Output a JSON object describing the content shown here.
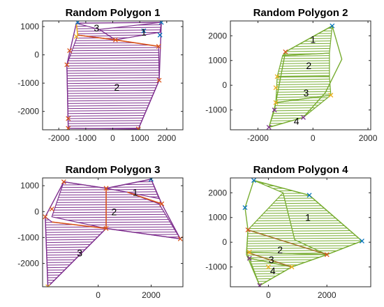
{
  "chart_data": [
    {
      "type": "line",
      "title": "Random Polygon 1",
      "xlim": [
        -2600,
        2600
      ],
      "ylim": [
        -2650,
        1200
      ],
      "xticks": [
        -2000,
        -1000,
        0,
        1000,
        2000
      ],
      "xtick_labels": [
        "-2000",
        "-1000",
        "0",
        "1000",
        "2000"
      ],
      "yticks": [
        -2000,
        -1000,
        0,
        1000
      ],
      "ytick_labels": [
        "-2000",
        "-1000",
        "0",
        "1000"
      ],
      "grid": false,
      "hatch_color": "#7e2f8e",
      "outline": [
        [
          -1350,
          1120
        ],
        [
          1800,
          1150
        ],
        [
          1720,
          -900
        ],
        [
          950,
          -2620
        ],
        [
          -1650,
          -2600
        ],
        [
          -1700,
          -350
        ]
      ],
      "regions": [
        {
          "label": "3",
          "points": [
            [
              -1350,
              1120
            ],
            [
              -500,
              900
            ],
            [
              100,
              530
            ],
            [
              -1300,
              700
            ]
          ],
          "label_at": [
            -600,
            950
          ]
        },
        {
          "label": "1",
          "points": [
            [
              100,
              530
            ],
            [
              1750,
              800
            ],
            [
              1800,
              1150
            ],
            [
              -500,
              900
            ]
          ],
          "label_at": [
            1150,
            800
          ]
        },
        {
          "label": "2",
          "points": [
            [
              -1700,
              -350
            ],
            [
              -1300,
              700
            ],
            [
              100,
              530
            ],
            [
              1700,
              300
            ],
            [
              1720,
              -900
            ],
            [
              950,
              -2620
            ],
            [
              -1650,
              -2600
            ]
          ],
          "label_at": [
            150,
            -1150
          ]
        }
      ],
      "markers": [
        {
          "x": -1300,
          "y": 1150,
          "color": "#0072bd"
        },
        {
          "x": 1800,
          "y": 1150,
          "color": "#0072bd"
        },
        {
          "x": 1150,
          "y": 850,
          "color": "#0072bd"
        },
        {
          "x": 1750,
          "y": 700,
          "color": "#0072bd"
        },
        {
          "x": -1350,
          "y": 650,
          "color": "#edb120"
        },
        {
          "x": 100,
          "y": 530,
          "color": "#d95319"
        },
        {
          "x": 1700,
          "y": 300,
          "color": "#d95319"
        },
        {
          "x": -1600,
          "y": 150,
          "color": "#d95319"
        },
        {
          "x": -1700,
          "y": -350,
          "color": "#d95319"
        },
        {
          "x": 1720,
          "y": -900,
          "color": "#d95319"
        },
        {
          "x": -1650,
          "y": -2250,
          "color": "#d95319"
        },
        {
          "x": -1650,
          "y": -2600,
          "color": "#d95319"
        },
        {
          "x": 950,
          "y": -2620,
          "color": "#d95319"
        }
      ],
      "inner_lines": [
        {
          "points": [
            [
              -1300,
              700
            ],
            [
              100,
              530
            ],
            [
              1700,
              300
            ]
          ],
          "color": "#d95319"
        },
        {
          "points": [
            [
              -1350,
              1120
            ],
            [
              -1300,
              700
            ]
          ],
          "color": "#edb120"
        }
      ]
    },
    {
      "type": "line",
      "title": "Random Polygon 2",
      "xlim": [
        -3000,
        2100
      ],
      "ylim": [
        -1800,
        2600
      ],
      "xticks": [
        -2000,
        0,
        2000
      ],
      "xtick_labels": [
        "-2000",
        "0",
        "2000"
      ],
      "yticks": [
        -1000,
        0,
        1000,
        2000
      ],
      "ytick_labels": [
        "-1000",
        "0",
        "1000",
        "2000"
      ],
      "grid": false,
      "hatch_color": "#77ac30",
      "outline": [
        [
          700,
          2400
        ],
        [
          1050,
          1050
        ],
        [
          450,
          -300
        ],
        [
          -350,
          -1300
        ],
        [
          -1600,
          -1700
        ],
        [
          -1400,
          -1000
        ],
        [
          -1000,
          1350
        ]
      ],
      "regions": [
        {
          "label": "1",
          "points": [
            [
              -1000,
              1350
            ],
            [
              700,
              2400
            ],
            [
              600,
              1300
            ],
            [
              -1100,
              1200
            ]
          ],
          "label_at": [
            0,
            1850
          ]
        },
        {
          "label": "2",
          "points": [
            [
              -1100,
              1200
            ],
            [
              600,
              1300
            ],
            [
              600,
              350
            ],
            [
              -1300,
              350
            ]
          ],
          "label_at": [
            -150,
            800
          ]
        },
        {
          "label": "3",
          "points": [
            [
              -1300,
              350
            ],
            [
              600,
              350
            ],
            [
              650,
              -400
            ],
            [
              -1350,
              -700
            ]
          ],
          "label_at": [
            -250,
            -300
          ]
        },
        {
          "label": "4",
          "points": [
            [
              -1350,
              -700
            ],
            [
              650,
              -400
            ],
            [
              -350,
              -1300
            ],
            [
              -1600,
              -1700
            ]
          ],
          "label_at": [
            -600,
            -1450
          ]
        }
      ],
      "markers": [
        {
          "x": 700,
          "y": 2400,
          "color": "#0072bd"
        },
        {
          "x": -1000,
          "y": 1350,
          "color": "#d95319"
        },
        {
          "x": -1300,
          "y": 350,
          "color": "#edb120"
        },
        {
          "x": -1350,
          "y": -100,
          "color": "#edb120"
        },
        {
          "x": 650,
          "y": -400,
          "color": "#edb120"
        },
        {
          "x": -1350,
          "y": -700,
          "color": "#edb120"
        },
        {
          "x": -1400,
          "y": -1000,
          "color": "#7e2f8e"
        },
        {
          "x": -350,
          "y": -1300,
          "color": "#7e2f8e"
        },
        {
          "x": -1600,
          "y": -1700,
          "color": "#7e2f8e"
        }
      ],
      "inner_lines": []
    },
    {
      "type": "line",
      "title": "Random Polygon 3",
      "xlim": [
        -2100,
        3200
      ],
      "ylim": [
        -2900,
        1300
      ],
      "xticks": [
        0,
        2000
      ],
      "xtick_labels": [
        "0",
        "2000"
      ],
      "yticks": [
        -2000,
        -1000,
        0,
        1000
      ],
      "ytick_labels": [
        "-2000",
        "-1000",
        "0",
        "1000"
      ],
      "grid": false,
      "hatch_color": "#7e2f8e",
      "outline": [
        [
          -1300,
          1150
        ],
        [
          300,
          900
        ],
        [
          2000,
          1250
        ],
        [
          2400,
          300
        ],
        [
          3100,
          -1050
        ],
        [
          300,
          -650
        ],
        [
          -1900,
          -2900
        ],
        [
          -2000,
          -200
        ]
      ],
      "regions": [
        {
          "label": "1",
          "points": [
            [
              300,
              900
            ],
            [
              2000,
              1250
            ],
            [
              2300,
              500
            ],
            [
              1100,
              750
            ]
          ],
          "label_at": [
            1400,
            750
          ]
        },
        {
          "label": "2",
          "points": [
            [
              -1300,
              1150
            ],
            [
              300,
              900
            ],
            [
              1100,
              750
            ],
            [
              2300,
              300
            ],
            [
              3100,
              -1050
            ],
            [
              300,
              -650
            ],
            [
              -1750,
              -200
            ]
          ],
          "label_at": [
            600,
            0
          ]
        },
        {
          "label": "3",
          "points": [
            [
              -2000,
              -200
            ],
            [
              -1750,
              -400
            ],
            [
              300,
              -650
            ],
            [
              -1900,
              -2900
            ]
          ],
          "label_at": [
            -700,
            -1600
          ]
        }
      ],
      "markers": [
        {
          "x": 2000,
          "y": 1250,
          "color": "#0072bd"
        },
        {
          "x": -1300,
          "y": 1150,
          "color": "#d95319"
        },
        {
          "x": 300,
          "y": 900,
          "color": "#d95319"
        },
        {
          "x": 2400,
          "y": 300,
          "color": "#d95319"
        },
        {
          "x": 3100,
          "y": -1050,
          "color": "#d95319"
        },
        {
          "x": -1750,
          "y": 100,
          "color": "#d95319"
        },
        {
          "x": -2000,
          "y": -200,
          "color": "#d95319"
        },
        {
          "x": 300,
          "y": -650,
          "color": "#d95319"
        },
        {
          "x": -1900,
          "y": -2900,
          "color": "#edb120"
        }
      ],
      "inner_lines": [
        {
          "points": [
            [
              -1750,
              -400
            ],
            [
              300,
              -650
            ]
          ],
          "color": "#d95319"
        },
        {
          "points": [
            [
              300,
              900
            ],
            [
              300,
              -650
            ]
          ],
          "color": "#d95319"
        },
        {
          "points": [
            [
              1100,
              750
            ],
            [
              2400,
              300
            ]
          ],
          "color": "#d95319"
        }
      ]
    },
    {
      "type": "line",
      "title": "Random Polygon 4",
      "xlim": [
        -1300,
        3500
      ],
      "ylim": [
        -1800,
        2600
      ],
      "xticks": [
        0,
        2000
      ],
      "xtick_labels": [
        "0",
        "2000"
      ],
      "yticks": [
        -1000,
        0,
        1000,
        2000
      ],
      "ytick_labels": [
        "-1000",
        "0",
        "1000",
        "2000"
      ],
      "grid": false,
      "hatch_color": "#77ac30",
      "outline": [
        [
          -500,
          2500
        ],
        [
          1400,
          1900
        ],
        [
          3200,
          50
        ],
        [
          2000,
          -500
        ],
        [
          800,
          -1000
        ],
        [
          -300,
          -1750
        ],
        [
          -750,
          -500
        ],
        [
          -700,
          500
        ],
        [
          -800,
          1400
        ]
      ],
      "regions": [
        {
          "label": "1",
          "points": [
            [
              -500,
              2500
            ],
            [
              1400,
              1900
            ],
            [
              3200,
              50
            ],
            [
              2000,
              -500
            ],
            [
              900,
              100
            ],
            [
              500,
              2000
            ]
          ],
          "label_at": [
            1350,
            1000
          ]
        },
        {
          "label": "2",
          "points": [
            [
              -700,
              500
            ],
            [
              500,
              2000
            ],
            [
              900,
              100
            ],
            [
              2000,
              -500
            ],
            [
              -750,
              -400
            ]
          ],
          "label_at": [
            400,
            -300
          ]
        },
        {
          "label": "3",
          "points": [
            [
              -750,
              -400
            ],
            [
              2000,
              -500
            ],
            [
              800,
              -1000
            ],
            [
              -650,
              -650
            ]
          ],
          "label_at": [
            100,
            -700
          ]
        },
        {
          "label": "4",
          "points": [
            [
              -650,
              -650
            ],
            [
              800,
              -1000
            ],
            [
              -300,
              -1750
            ]
          ],
          "label_at": [
            150,
            -1150
          ]
        }
      ],
      "markers": [
        {
          "x": -500,
          "y": 2500,
          "color": "#0072bd"
        },
        {
          "x": 1400,
          "y": 1900,
          "color": "#0072bd"
        },
        {
          "x": -800,
          "y": 1400,
          "color": "#0072bd"
        },
        {
          "x": 3200,
          "y": 50,
          "color": "#0072bd"
        },
        {
          "x": -700,
          "y": 500,
          "color": "#d95319"
        },
        {
          "x": 2000,
          "y": -500,
          "color": "#d95319"
        },
        {
          "x": -650,
          "y": -400,
          "color": "#edb120"
        },
        {
          "x": 800,
          "y": -1000,
          "color": "#edb120"
        },
        {
          "x": -650,
          "y": -650,
          "color": "#7e2f8e"
        },
        {
          "x": 0,
          "y": -1000,
          "color": "#edb120"
        },
        {
          "x": -300,
          "y": -1750,
          "color": "#7e2f8e"
        }
      ],
      "inner_lines": [
        {
          "points": [
            [
              -700,
              500
            ],
            [
              2000,
              -500
            ]
          ],
          "color": "#a2752b"
        },
        {
          "points": [
            [
              -750,
              -400
            ],
            [
              800,
              -1000
            ]
          ],
          "color": "#a2752b"
        }
      ]
    }
  ]
}
